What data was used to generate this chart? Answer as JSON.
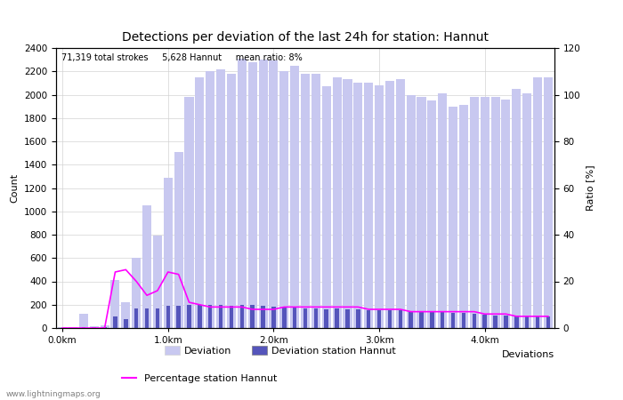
{
  "title": "Detections per deviation of the last 24h for station: Hannut",
  "annotation": "71,319 total strokes     5,628 Hannut     mean ratio: 8%",
  "xlabel": "Deviations",
  "ylabel_left": "Count",
  "ylabel_right": "Ratio [%]",
  "watermark": "www.lightningmaps.org",
  "ylim_left": [
    0,
    2400
  ],
  "ylim_right": [
    0,
    120
  ],
  "xtick_labels": [
    "0.0km",
    "1.0km",
    "2.0km",
    "3.0km",
    "4.0km"
  ],
  "xtick_positions": [
    0,
    10,
    20,
    30,
    40
  ],
  "deviation_bars": [
    5,
    8,
    120,
    15,
    20,
    410,
    220,
    600,
    1050,
    790,
    1290,
    1510,
    1980,
    2150,
    2200,
    2220,
    2180,
    2310,
    2280,
    2300,
    2290,
    2200,
    2250,
    2180,
    2180,
    2070,
    2150,
    2130,
    2100,
    2100,
    2080,
    2120,
    2130,
    2000,
    1980,
    1950,
    2010,
    1900,
    1910,
    1980,
    1980,
    1980,
    1960,
    2050,
    2010,
    2150,
    2150
  ],
  "station_bars": [
    2,
    3,
    10,
    5,
    8,
    100,
    80,
    170,
    170,
    170,
    190,
    190,
    200,
    200,
    200,
    200,
    190,
    200,
    200,
    190,
    180,
    175,
    175,
    170,
    165,
    160,
    165,
    160,
    160,
    155,
    155,
    150,
    150,
    140,
    140,
    140,
    135,
    130,
    130,
    120,
    115,
    110,
    110,
    105,
    100,
    100,
    100
  ],
  "percentage_line": [
    0,
    0,
    0,
    0,
    0,
    24,
    25,
    20,
    14,
    16,
    24,
    23,
    11,
    10,
    9,
    9,
    9,
    9,
    8,
    8,
    8,
    9,
    9,
    9,
    9,
    9,
    9,
    9,
    9,
    8,
    8,
    8,
    8,
    7,
    7,
    7,
    7,
    7,
    7,
    7,
    6,
    6,
    6,
    5,
    5,
    5,
    5
  ],
  "bar_color_deviation": "#c8c8f0",
  "bar_color_station": "#5555bb",
  "line_color": "#ff00ff",
  "legend_items": [
    "Deviation",
    "Deviation station Hannut",
    "Percentage station Hannut"
  ],
  "yticks_left": [
    0,
    200,
    400,
    600,
    800,
    1000,
    1200,
    1400,
    1600,
    1800,
    2000,
    2200,
    2400
  ],
  "yticks_right": [
    0,
    20,
    40,
    60,
    80,
    100,
    120
  ]
}
